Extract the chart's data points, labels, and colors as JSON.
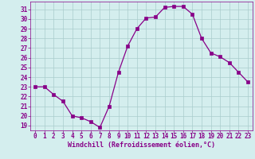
{
  "x": [
    0,
    1,
    2,
    3,
    4,
    5,
    6,
    7,
    8,
    9,
    10,
    11,
    12,
    13,
    14,
    15,
    16,
    17,
    18,
    19,
    20,
    21,
    22,
    23
  ],
  "y": [
    23.0,
    23.0,
    22.2,
    21.5,
    20.0,
    19.8,
    19.4,
    18.8,
    21.0,
    24.5,
    27.2,
    29.0,
    30.1,
    30.2,
    31.2,
    31.3,
    31.3,
    30.5,
    28.0,
    26.5,
    26.1,
    25.5,
    24.5,
    23.5
  ],
  "line_color": "#880088",
  "marker": "s",
  "marker_size": 2.5,
  "bg_color": "#d4eeee",
  "grid_color": "#aacccc",
  "xlabel": "Windchill (Refroidissement éolien,°C)",
  "xlabel_color": "#880088",
  "tick_color": "#880088",
  "label_color": "#880088",
  "ylim": [
    18.5,
    31.8
  ],
  "xlim": [
    -0.5,
    23.5
  ],
  "yticks": [
    19,
    20,
    21,
    22,
    23,
    24,
    25,
    26,
    27,
    28,
    29,
    30,
    31
  ],
  "xticks": [
    0,
    1,
    2,
    3,
    4,
    5,
    6,
    7,
    8,
    9,
    10,
    11,
    12,
    13,
    14,
    15,
    16,
    17,
    18,
    19,
    20,
    21,
    22,
    23
  ],
  "tick_fontsize": 5.5,
  "xlabel_fontsize": 6.0,
  "spine_color": "#880088"
}
